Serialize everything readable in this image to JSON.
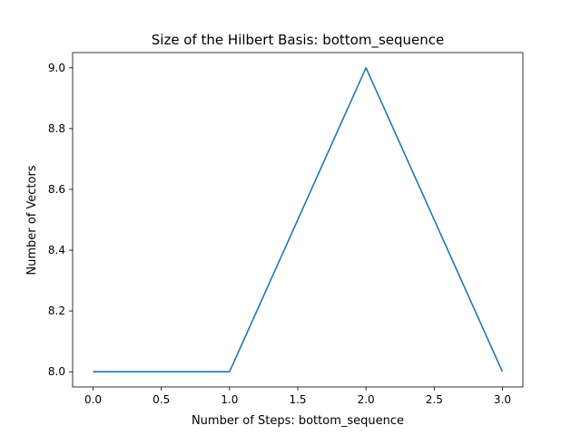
{
  "chart_data": {
    "type": "line",
    "title": "Size of the Hilbert Basis: bottom_sequence",
    "xlabel": "Number of Steps: bottom_sequence",
    "ylabel": "Number of Vectors",
    "x": [
      0,
      1,
      2,
      3
    ],
    "series": [
      {
        "values": [
          8,
          8,
          9,
          8
        ],
        "color": "#1f77b4"
      }
    ],
    "xlim": [
      -0.15,
      3.15
    ],
    "ylim": [
      7.95,
      9.05
    ],
    "xticks": [
      0.0,
      0.5,
      1.0,
      1.5,
      2.0,
      2.5,
      3.0
    ],
    "xtick_labels": [
      "0.0",
      "0.5",
      "1.0",
      "1.5",
      "2.0",
      "2.5",
      "3.0"
    ],
    "yticks": [
      8.0,
      8.2,
      8.4,
      8.6,
      8.8,
      9.0
    ],
    "ytick_labels": [
      "8.0",
      "8.2",
      "8.4",
      "8.6",
      "8.8",
      "9.0"
    ],
    "grid": false,
    "legend": false
  }
}
